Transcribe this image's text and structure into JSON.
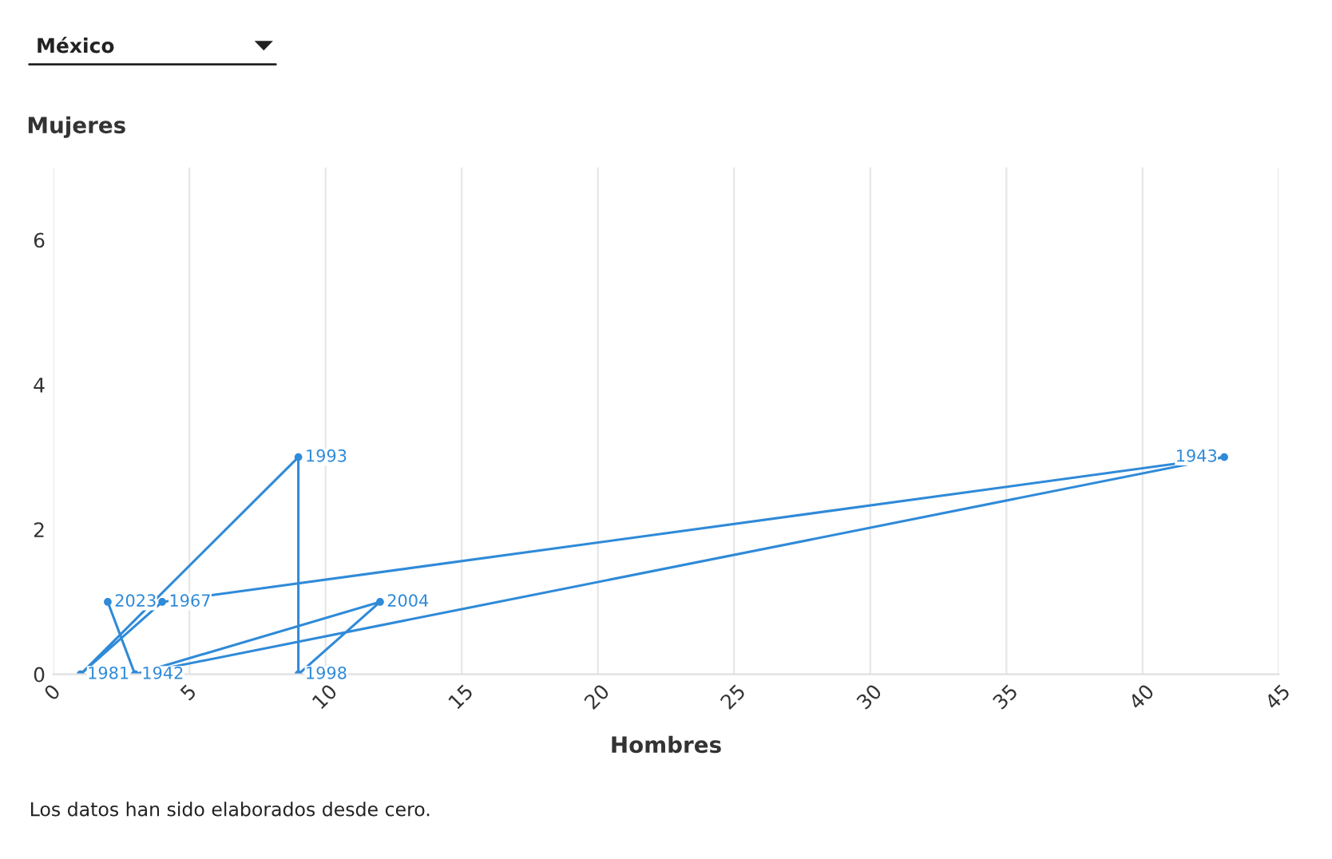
{
  "chart_data": {
    "type": "line",
    "title": "México",
    "xlabel": "Hombres",
    "ylabel": "Mujeres",
    "x": [
      3,
      43,
      4,
      1,
      9,
      9,
      12,
      3,
      2
    ],
    "series": [
      {
        "color": "#2f8ad8",
        "values": [
          0,
          3,
          1,
          0,
          3,
          0,
          1,
          0,
          1
        ]
      }
    ],
    "xlim": [
      0,
      45
    ],
    "xticks": [
      0,
      5,
      10,
      15,
      20,
      25,
      30,
      35,
      40,
      45
    ],
    "ylim": [
      0,
      7
    ],
    "yticks": [
      0,
      2,
      4,
      6
    ],
    "grid": "x",
    "marker": "circle",
    "line_style": "solid",
    "annotations": [
      {
        "text": "1942",
        "x": 3,
        "y": 0
      },
      {
        "text": "1943",
        "x": 43,
        "y": 3
      },
      {
        "text": "1967",
        "x": 4,
        "y": 1
      },
      {
        "text": "1981",
        "x": 1,
        "y": 0
      },
      {
        "text": "1993",
        "x": 9,
        "y": 3
      },
      {
        "text": "1998",
        "x": 9,
        "y": 0
      },
      {
        "text": "2004",
        "x": 12,
        "y": 1
      },
      {
        "text": "2023",
        "x": 2,
        "y": 1
      },
      "Los datos han sido elaborados desde cero."
    ]
  }
}
